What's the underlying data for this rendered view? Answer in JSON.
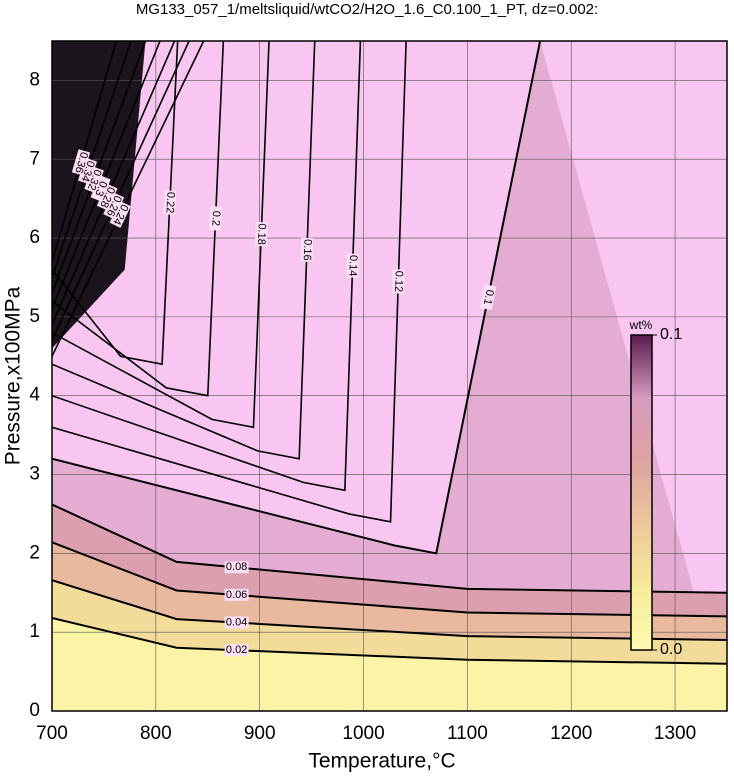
{
  "chart_data": {
    "type": "contour",
    "title": "MG133_057_1/meltsliquid/wtCO2/H2O_1.6_C0.100_1_PT, dz=0.002:",
    "x_label": "Temperature,°C",
    "y_label": "Pressure,x100MPa",
    "xlim": [
      700,
      1350
    ],
    "ylim": [
      0,
      8.5
    ],
    "xticks": [
      700,
      800,
      900,
      1000,
      1100,
      1200,
      1300
    ],
    "yticks": [
      0,
      1,
      2,
      3,
      4,
      5,
      6,
      7,
      8
    ],
    "grid": true,
    "contour_levels": [
      0.02,
      0.04,
      0.06,
      0.08,
      0.1,
      0.12,
      0.14,
      0.16,
      0.18,
      0.2,
      0.22,
      0.24,
      0.26,
      0.28,
      0.3,
      0.32,
      0.34,
      0.36
    ],
    "line_color": "#000000",
    "colorbar": {
      "label": "wt%",
      "lim": [
        0,
        0.1
      ],
      "ticks": [
        {
          "value": 0,
          "label": "0.0"
        },
        0.1
      ],
      "colors": [
        "#fdfbb0",
        "#f7ea9a",
        "#eec79a",
        "#dea3a3",
        "#d89ac0",
        "#f8c6f0"
      ]
    }
  }
}
